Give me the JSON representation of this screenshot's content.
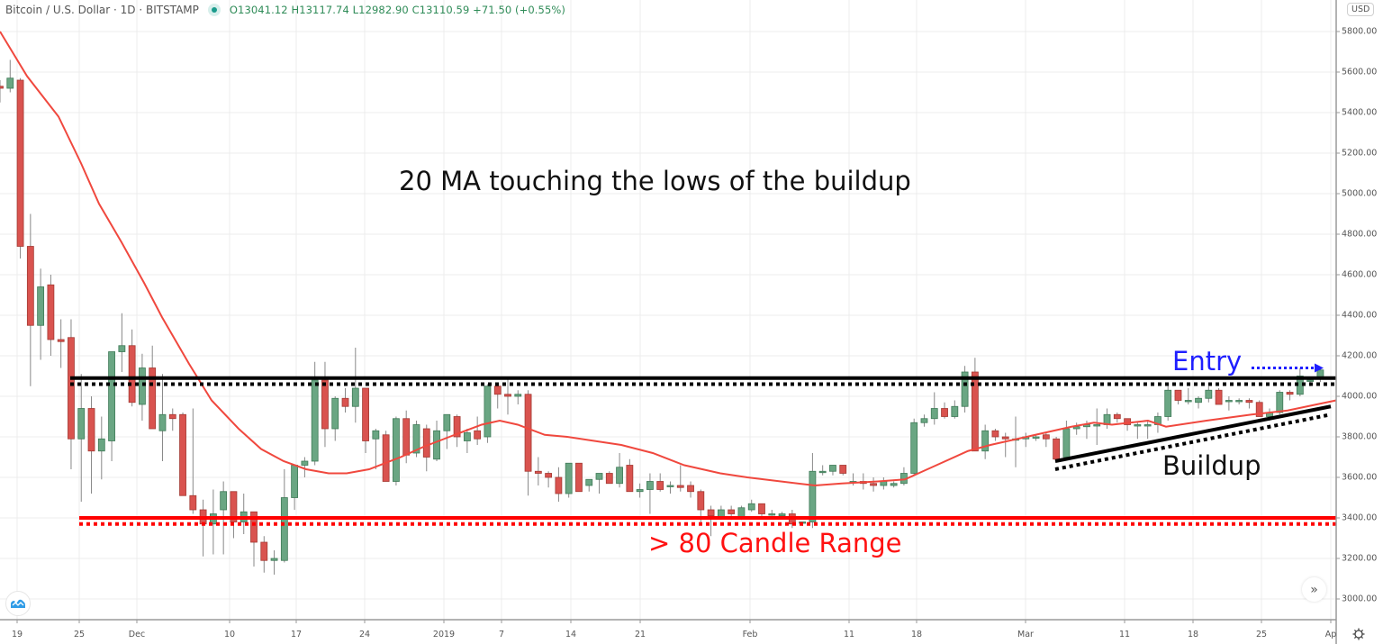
{
  "header": {
    "symbol": "Bitcoin / U.S. Dollar · 1D · BITSTAMP",
    "status_dot_color": "#1a9b8c",
    "ohlc": "O13041.12 H13117.74 L12982.90 C13110.59 +71.50 (+0.55%)"
  },
  "axis": {
    "currency_badge": "USD",
    "y_ticks": [
      "5800.00",
      "5600.00",
      "5400.00",
      "5200.00",
      "5000.00",
      "4800.00",
      "4600.00",
      "4400.00",
      "4200.00",
      "4000.00",
      "3800.00",
      "3600.00",
      "3400.00",
      "3200.00",
      "3000.00"
    ],
    "x_ticks": [
      {
        "label": "19",
        "x": 19
      },
      {
        "label": "25",
        "x": 88
      },
      {
        "label": "Dec",
        "x": 152
      },
      {
        "label": "10",
        "x": 255
      },
      {
        "label": "17",
        "x": 329
      },
      {
        "label": "24",
        "x": 405
      },
      {
        "label": "2019",
        "x": 493
      },
      {
        "label": "7",
        "x": 557
      },
      {
        "label": "14",
        "x": 634
      },
      {
        "label": "21",
        "x": 711
      },
      {
        "label": "Feb",
        "x": 833
      },
      {
        "label": "11",
        "x": 943
      },
      {
        "label": "18",
        "x": 1018
      },
      {
        "label": "Mar",
        "x": 1139
      },
      {
        "label": "11",
        "x": 1249
      },
      {
        "label": "18",
        "x": 1325
      },
      {
        "label": "25",
        "x": 1401
      },
      {
        "label": "Ap",
        "x": 1478
      }
    ]
  },
  "annotations": {
    "title_note": "20 MA touching the lows of the buildup",
    "range_note": "> 80 Candle Range",
    "buildup_label": "Buildup",
    "entry_label": "Entry"
  },
  "colors": {
    "up": "#6aa683",
    "down": "#d9534f",
    "ma": "#f0483e",
    "resistance": "#000000",
    "support": "#ff0000",
    "entry": "#1f1fff",
    "grid": "#ececec"
  },
  "controls": {
    "scroll_right": "»",
    "settings": "gear"
  },
  "chart_data": {
    "type": "candlestick",
    "title": "Bitcoin / U.S. Dollar · 1D · BITSTAMP",
    "xlabel": "",
    "ylabel": "USD",
    "ylim": [
      2900,
      5900
    ],
    "y_ticks": [
      3000,
      3200,
      3400,
      3600,
      3800,
      4000,
      4200,
      4400,
      4600,
      4800,
      5000,
      5200,
      5400,
      5600,
      5800
    ],
    "x_tick_labels": [
      "19",
      "25",
      "Dec",
      "10",
      "17",
      "24",
      "2019",
      "7",
      "14",
      "21",
      "Feb",
      "11",
      "18",
      "Mar",
      "11",
      "18",
      "25",
      "Ap"
    ],
    "grid": true,
    "candles_ohlc": [
      [
        5530,
        5560,
        5450,
        5520
      ],
      [
        5520,
        5660,
        5500,
        5570
      ],
      [
        5560,
        5570,
        4680,
        4740
      ],
      [
        4740,
        4900,
        4050,
        4350
      ],
      [
        4350,
        4630,
        4180,
        4540
      ],
      [
        4550,
        4600,
        4200,
        4280
      ],
      [
        4280,
        4380,
        4140,
        4270
      ],
      [
        4290,
        4380,
        3640,
        3790
      ],
      [
        3790,
        4110,
        3480,
        3940
      ],
      [
        3940,
        4000,
        3520,
        3730
      ],
      [
        3730,
        3900,
        3590,
        3790
      ],
      [
        3780,
        4060,
        3680,
        4220
      ],
      [
        4220,
        4410,
        4120,
        4250
      ],
      [
        4250,
        4330,
        3950,
        3970
      ],
      [
        3960,
        4210,
        3880,
        4140
      ],
      [
        4140,
        4250,
        3860,
        3840
      ],
      [
        3830,
        4110,
        3680,
        3910
      ],
      [
        3910,
        3940,
        3830,
        3890
      ],
      [
        3910,
        3920,
        3520,
        3510
      ],
      [
        3510,
        3940,
        3420,
        3440
      ],
      [
        3440,
        3490,
        3210,
        3370
      ],
      [
        3370,
        3540,
        3220,
        3420
      ],
      [
        3440,
        3580,
        3220,
        3530
      ],
      [
        3530,
        3530,
        3300,
        3380
      ],
      [
        3380,
        3520,
        3320,
        3430
      ],
      [
        3430,
        3430,
        3160,
        3280
      ],
      [
        3280,
        3310,
        3130,
        3190
      ],
      [
        3190,
        3240,
        3120,
        3200
      ],
      [
        3190,
        3640,
        3180,
        3500
      ],
      [
        3500,
        3650,
        3440,
        3660
      ],
      [
        3660,
        3700,
        3600,
        3680
      ],
      [
        3680,
        4170,
        3660,
        4080
      ],
      [
        4080,
        4170,
        3750,
        3840
      ],
      [
        3840,
        4000,
        3780,
        3990
      ],
      [
        3990,
        4040,
        3920,
        3950
      ],
      [
        3950,
        4240,
        3870,
        4040
      ],
      [
        4040,
        4040,
        3720,
        3780
      ],
      [
        3790,
        3840,
        3640,
        3830
      ],
      [
        3810,
        3830,
        3650,
        3580
      ],
      [
        3580,
        3900,
        3560,
        3890
      ],
      [
        3890,
        3930,
        3670,
        3710
      ],
      [
        3720,
        3880,
        3700,
        3860
      ],
      [
        3840,
        3860,
        3630,
        3700
      ],
      [
        3690,
        3880,
        3680,
        3830
      ],
      [
        3830,
        3910,
        3740,
        3910
      ],
      [
        3900,
        3910,
        3750,
        3800
      ],
      [
        3780,
        3840,
        3720,
        3820
      ],
      [
        3830,
        3900,
        3760,
        3790
      ],
      [
        3800,
        4060,
        3770,
        4050
      ],
      [
        4050,
        4060,
        3940,
        4010
      ],
      [
        4010,
        4090,
        3910,
        4000
      ],
      [
        4000,
        4030,
        3960,
        4010
      ],
      [
        4010,
        4030,
        3510,
        3630
      ],
      [
        3630,
        3700,
        3560,
        3620
      ],
      [
        3620,
        3630,
        3550,
        3600
      ],
      [
        3600,
        3650,
        3480,
        3520
      ],
      [
        3520,
        3660,
        3500,
        3670
      ],
      [
        3670,
        3670,
        3530,
        3530
      ],
      [
        3560,
        3580,
        3530,
        3590
      ],
      [
        3590,
        3610,
        3520,
        3620
      ],
      [
        3620,
        3630,
        3570,
        3570
      ],
      [
        3570,
        3720,
        3550,
        3650
      ],
      [
        3660,
        3690,
        3560,
        3530
      ],
      [
        3530,
        3570,
        3500,
        3540
      ],
      [
        3540,
        3620,
        3420,
        3580
      ],
      [
        3580,
        3620,
        3530,
        3540
      ],
      [
        3560,
        3580,
        3520,
        3560
      ],
      [
        3560,
        3660,
        3530,
        3550
      ],
      [
        3560,
        3580,
        3500,
        3530
      ],
      [
        3530,
        3540,
        3370,
        3440
      ],
      [
        3440,
        3460,
        3310,
        3410
      ],
      [
        3400,
        3460,
        3390,
        3440
      ],
      [
        3440,
        3460,
        3390,
        3420
      ],
      [
        3400,
        3460,
        3390,
        3450
      ],
      [
        3440,
        3490,
        3430,
        3470
      ],
      [
        3470,
        3470,
        3400,
        3420
      ],
      [
        3420,
        3440,
        3410,
        3420
      ],
      [
        3410,
        3430,
        3400,
        3420
      ],
      [
        3420,
        3440,
        3350,
        3370
      ],
      [
        3380,
        3380,
        3360,
        3380
      ],
      [
        3380,
        3720,
        3350,
        3630
      ],
      [
        3630,
        3660,
        3610,
        3630
      ],
      [
        3630,
        3660,
        3610,
        3660
      ],
      [
        3660,
        3660,
        3610,
        3620
      ],
      [
        3580,
        3620,
        3560,
        3580
      ],
      [
        3580,
        3620,
        3540,
        3570
      ],
      [
        3570,
        3600,
        3530,
        3560
      ],
      [
        3560,
        3600,
        3540,
        3580
      ],
      [
        3560,
        3580,
        3550,
        3570
      ],
      [
        3570,
        3650,
        3560,
        3620
      ],
      [
        3620,
        3890,
        3610,
        3870
      ],
      [
        3870,
        3910,
        3850,
        3890
      ],
      [
        3890,
        4020,
        3860,
        3940
      ],
      [
        3940,
        3970,
        3890,
        3900
      ],
      [
        3900,
        3980,
        3890,
        3950
      ],
      [
        3950,
        4150,
        3920,
        4120
      ],
      [
        4120,
        4190,
        3740,
        3730
      ],
      [
        3730,
        3860,
        3690,
        3830
      ],
      [
        3830,
        3840,
        3780,
        3800
      ],
      [
        3800,
        3820,
        3700,
        3790
      ],
      [
        3790,
        3900,
        3650,
        3790
      ],
      [
        3790,
        3820,
        3750,
        3800
      ],
      [
        3800,
        3810,
        3780,
        3800
      ],
      [
        3810,
        3820,
        3750,
        3790
      ],
      [
        3790,
        3800,
        3710,
        3690
      ],
      [
        3700,
        3880,
        3690,
        3840
      ],
      [
        3840,
        3870,
        3810,
        3850
      ],
      [
        3850,
        3880,
        3790,
        3860
      ],
      [
        3860,
        3940,
        3760,
        3860
      ],
      [
        3860,
        3940,
        3840,
        3910
      ],
      [
        3910,
        3920,
        3870,
        3890
      ],
      [
        3890,
        3890,
        3830,
        3860
      ],
      [
        3860,
        3870,
        3790,
        3860
      ],
      [
        3860,
        3880,
        3790,
        3860
      ],
      [
        3860,
        3920,
        3820,
        3900
      ],
      [
        3900,
        4060,
        3880,
        4030
      ],
      [
        4030,
        4030,
        3960,
        3980
      ],
      [
        3980,
        4040,
        3960,
        3980
      ],
      [
        3970,
        4000,
        3940,
        3990
      ],
      [
        3990,
        4050,
        3970,
        4030
      ],
      [
        4030,
        4040,
        3970,
        3960
      ],
      [
        3980,
        4000,
        3930,
        3980
      ],
      [
        3980,
        3990,
        3960,
        3980
      ],
      [
        3980,
        3990,
        3940,
        3970
      ],
      [
        3970,
        3980,
        3900,
        3900
      ],
      [
        3900,
        3940,
        3880,
        3920
      ],
      [
        3920,
        4030,
        3910,
        4020
      ],
      [
        4020,
        4030,
        3980,
        4010
      ],
      [
        4010,
        4140,
        4000,
        4100
      ],
      [
        4080,
        4090,
        4050,
        4080
      ],
      [
        4090,
        4140,
        4070,
        4130
      ]
    ],
    "ma20": {
      "name": "20 MA",
      "points": [
        [
          5800,
          0
        ],
        [
          5580,
          30
        ],
        [
          5380,
          65
        ],
        [
          5150,
          90
        ],
        [
          4950,
          110
        ],
        [
          4760,
          135
        ],
        [
          4560,
          160
        ],
        [
          4390,
          180
        ],
        [
          4160,
          210
        ],
        [
          3980,
          235
        ],
        [
          3840,
          265
        ],
        [
          3740,
          290
        ],
        [
          3680,
          315
        ],
        [
          3640,
          340
        ],
        [
          3620,
          365
        ],
        [
          3620,
          385
        ],
        [
          3640,
          410
        ],
        [
          3700,
          445
        ],
        [
          3750,
          470
        ],
        [
          3810,
          505
        ],
        [
          3860,
          535
        ],
        [
          3880,
          555
        ],
        [
          3860,
          575
        ],
        [
          3810,
          605
        ],
        [
          3800,
          630
        ],
        [
          3780,
          660
        ],
        [
          3760,
          690
        ],
        [
          3720,
          725
        ],
        [
          3660,
          760
        ],
        [
          3620,
          800
        ],
        [
          3600,
          830
        ],
        [
          3560,
          905
        ],
        [
          3570,
          935
        ],
        [
          3580,
          975
        ],
        [
          3590,
          1005
        ],
        [
          3660,
          1040
        ],
        [
          3730,
          1075
        ],
        [
          3760,
          1100
        ],
        [
          3790,
          1130
        ],
        [
          3820,
          1160
        ],
        [
          3850,
          1190
        ],
        [
          3870,
          1215
        ],
        [
          3860,
          1235
        ],
        [
          3880,
          1275
        ],
        [
          3850,
          1295
        ],
        [
          3880,
          1340
        ],
        [
          3910,
          1390
        ],
        [
          3930,
          1430
        ],
        [
          3980,
          1484
        ]
      ]
    },
    "resistance": {
      "solid": 4090,
      "dotted": 4060,
      "x_start": 78,
      "x_end": 1484
    },
    "support": {
      "solid": 3400,
      "dotted": 3370,
      "x_start": 88,
      "x_end": 1484
    },
    "buildup_trendline": {
      "solid": [
        [
          1172,
          3680
        ],
        [
          1478,
          3950
        ]
      ],
      "dotted": [
        [
          1172,
          3640
        ],
        [
          1478,
          3910
        ]
      ]
    },
    "entry_arrow": {
      "from_x": 1390,
      "to_x": 1470,
      "price": 4140
    }
  }
}
